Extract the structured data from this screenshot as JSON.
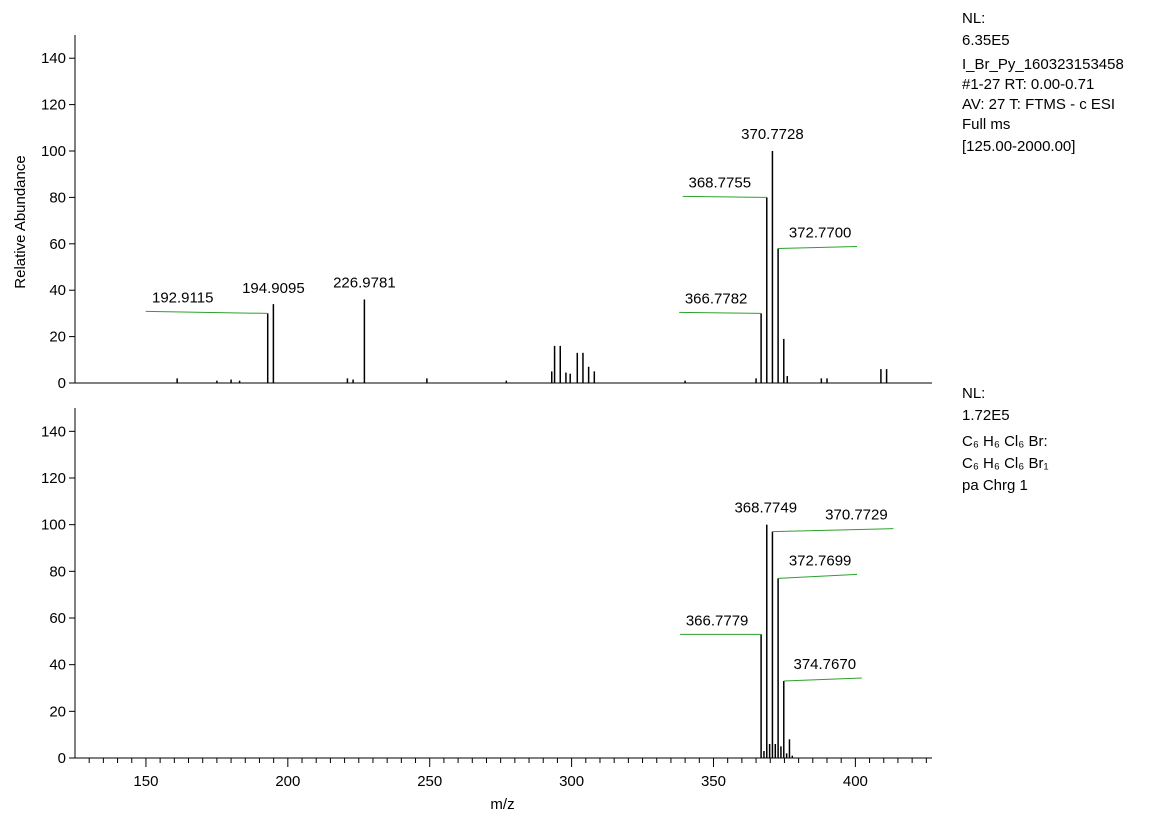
{
  "chart_data": [
    {
      "type": "stick",
      "ylabel": "Relative Abundance",
      "info": [
        "NL:",
        "6.35E5",
        "I_Br_Py_160323153458",
        "#1-27  RT: 0.00-0.71",
        "AV: 27 T: FTMS - c ESI",
        "Full ms",
        "[125.00-2000.00]"
      ],
      "xlim": [
        125,
        427
      ],
      "ylim": [
        0,
        150
      ],
      "yticks": [
        0,
        20,
        40,
        60,
        80,
        100,
        120,
        140
      ],
      "color": "#000000",
      "label_line_color": "#2ca02c",
      "x": [
        161,
        175,
        180,
        183,
        192.9115,
        194.9095,
        221,
        223,
        226.9781,
        249,
        277,
        293,
        294,
        296,
        298,
        299.5,
        302,
        304,
        306,
        308,
        340,
        365,
        366.7782,
        368.7755,
        370.7728,
        372.77,
        374.77,
        376,
        388,
        390,
        409,
        411
      ],
      "values": [
        2,
        1,
        1.5,
        1,
        30,
        34,
        2,
        1.5,
        36,
        2,
        1,
        5,
        16,
        16,
        4.5,
        4,
        13,
        13,
        7,
        5,
        1,
        2,
        30,
        80,
        100,
        58,
        19,
        3,
        2,
        2,
        6,
        6
      ],
      "x_labels": [
        null,
        null,
        null,
        null,
        "192.9115",
        "194.9095",
        null,
        null,
        "226.9781",
        null,
        null,
        null,
        null,
        null,
        null,
        null,
        null,
        null,
        null,
        null,
        null,
        null,
        "366.7782",
        "368.7755",
        "370.7728",
        "372.7700",
        null,
        null,
        null,
        null,
        null,
        null
      ]
    },
    {
      "type": "stick",
      "xlabel": "m/z",
      "info": [
        "NL:",
        "1.72E5",
        "C₆ H₆ Cl₆ Br:",
        "C₆ H₆ Cl₆ Br₁",
        "pa Chrg 1"
      ],
      "xlim": [
        125,
        427
      ],
      "ylim": [
        0,
        150
      ],
      "yticks": [
        0,
        20,
        40,
        60,
        80,
        100,
        120,
        140
      ],
      "xticks": [
        150,
        200,
        250,
        300,
        350,
        400
      ],
      "x_minor_ticks": [
        130,
        135,
        140,
        145,
        155,
        160,
        165,
        170,
        175,
        180,
        185,
        190,
        195,
        205,
        210,
        215,
        220,
        225,
        230,
        235,
        240,
        245,
        255,
        260,
        265,
        270,
        275,
        280,
        285,
        290,
        295,
        305,
        310,
        315,
        320,
        325,
        330,
        335,
        340,
        345,
        355,
        360,
        365,
        370,
        375,
        380,
        385,
        390,
        395,
        405,
        410,
        415,
        420,
        425
      ],
      "color": "#000000",
      "label_line_color": "#2ca02c",
      "x": [
        366.7779,
        367.78,
        368.7749,
        369.78,
        370.7729,
        371.78,
        372.7699,
        373.77,
        374.767,
        375.77,
        376.77,
        377.77
      ],
      "values": [
        53,
        3,
        100,
        6,
        97,
        6,
        77,
        5,
        33,
        2,
        8,
        1
      ],
      "x_labels": [
        "366.7779",
        null,
        "368.7749",
        null,
        "370.7729",
        null,
        "372.7699",
        null,
        "374.7670",
        null,
        null,
        null
      ]
    }
  ]
}
